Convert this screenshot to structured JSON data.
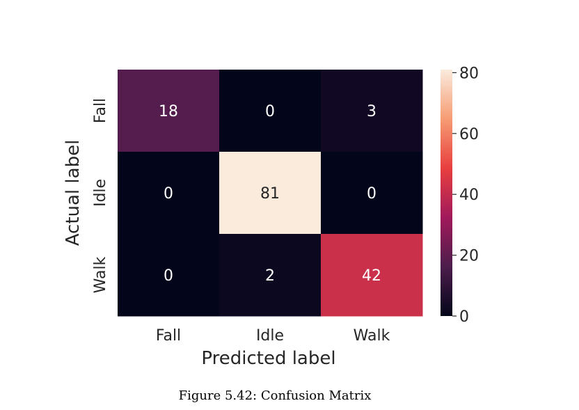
{
  "caption": "Figure 5.42: Confusion Matrix",
  "chart_data": {
    "type": "heatmap",
    "title": "",
    "xlabel": "Predicted label",
    "ylabel": "Actual label",
    "x_categories": [
      "Fall",
      "Idle",
      "Walk"
    ],
    "y_categories": [
      "Fall",
      "Idle",
      "Walk"
    ],
    "values": [
      [
        18,
        0,
        3
      ],
      [
        0,
        81,
        0
      ],
      [
        0,
        2,
        42
      ]
    ],
    "colorbar": {
      "min": 0,
      "max": 81,
      "ticks": [
        "0",
        "20",
        "40",
        "60",
        "80"
      ],
      "colormap": "rocket",
      "colors": [
        "#03051a",
        "#4c1d4b",
        "#a11a5b",
        "#e83f3f",
        "#f69c73",
        "#faebdd"
      ]
    },
    "annotation_colors": {
      "dark": "#262626",
      "light": "#ffffff"
    }
  }
}
